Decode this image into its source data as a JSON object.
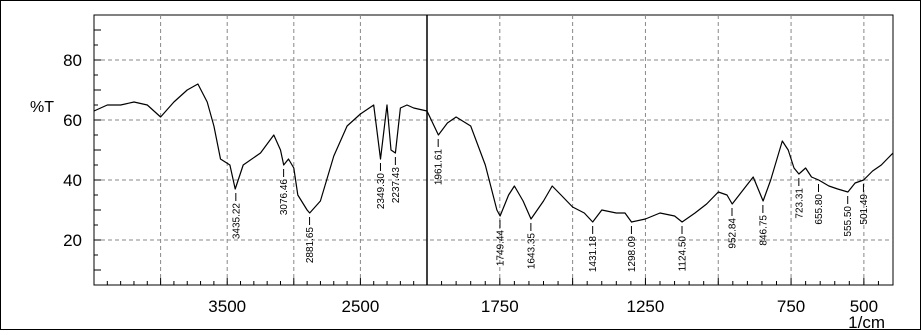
{
  "chart_data": {
    "type": "line",
    "title": "",
    "xlabel": "1/cm",
    "ylabel": "%T",
    "ylim": [
      5,
      95
    ],
    "grid": true,
    "x_axis": {
      "scale": "split",
      "segments": [
        {
          "from": 4500,
          "to": 2000
        },
        {
          "from": 2000,
          "to": 400
        }
      ],
      "tick_labels": [
        "3500",
        "2500",
        "1750",
        "1250",
        "750",
        "500"
      ],
      "tick_values": [
        3500,
        2500,
        1750,
        1250,
        750,
        500
      ]
    },
    "y_axis": {
      "tick_labels": [
        "20",
        "40",
        "60",
        "80"
      ],
      "tick_values": [
        20,
        40,
        60,
        80
      ]
    },
    "series": [
      {
        "color": "#000000",
        "points": [
          [
            4500,
            63
          ],
          [
            4400,
            65
          ],
          [
            4300,
            65
          ],
          [
            4200,
            66
          ],
          [
            4100,
            65
          ],
          [
            4000,
            61
          ],
          [
            3900,
            66
          ],
          [
            3800,
            70
          ],
          [
            3720,
            72
          ],
          [
            3650,
            66
          ],
          [
            3600,
            58
          ],
          [
            3550,
            47
          ],
          [
            3480,
            45
          ],
          [
            3440,
            37
          ],
          [
            3380,
            45
          ],
          [
            3250,
            49
          ],
          [
            3150,
            55
          ],
          [
            3100,
            50
          ],
          [
            3076,
            45
          ],
          [
            3040,
            47
          ],
          [
            3000,
            44
          ],
          [
            2970,
            35
          ],
          [
            2900,
            30
          ],
          [
            2881,
            29
          ],
          [
            2800,
            33
          ],
          [
            2700,
            48
          ],
          [
            2600,
            58
          ],
          [
            2500,
            62
          ],
          [
            2400,
            65
          ],
          [
            2349,
            47
          ],
          [
            2300,
            65
          ],
          [
            2270,
            50
          ],
          [
            2237,
            49
          ],
          [
            2200,
            64
          ],
          [
            2150,
            65
          ],
          [
            2100,
            64
          ],
          [
            2000,
            63
          ],
          [
            1961,
            55
          ],
          [
            1930,
            59
          ],
          [
            1900,
            61
          ],
          [
            1850,
            58
          ],
          [
            1800,
            45
          ],
          [
            1760,
            30
          ],
          [
            1749,
            28
          ],
          [
            1720,
            35
          ],
          [
            1700,
            38
          ],
          [
            1670,
            33
          ],
          [
            1643,
            27
          ],
          [
            1600,
            33
          ],
          [
            1570,
            38
          ],
          [
            1540,
            35
          ],
          [
            1500,
            31
          ],
          [
            1460,
            29
          ],
          [
            1431,
            26
          ],
          [
            1400,
            30
          ],
          [
            1350,
            29
          ],
          [
            1320,
            29
          ],
          [
            1298,
            26
          ],
          [
            1250,
            27
          ],
          [
            1200,
            29
          ],
          [
            1150,
            28
          ],
          [
            1124,
            26
          ],
          [
            1080,
            29
          ],
          [
            1040,
            32
          ],
          [
            1000,
            36
          ],
          [
            970,
            35
          ],
          [
            952,
            32
          ],
          [
            920,
            36
          ],
          [
            880,
            41
          ],
          [
            846,
            33
          ],
          [
            820,
            40
          ],
          [
            780,
            53
          ],
          [
            760,
            50
          ],
          [
            740,
            44
          ],
          [
            723,
            42
          ],
          [
            700,
            44
          ],
          [
            680,
            41
          ],
          [
            655,
            40
          ],
          [
            620,
            38
          ],
          [
            590,
            37
          ],
          [
            555,
            36
          ],
          [
            530,
            39
          ],
          [
            501,
            40
          ],
          [
            470,
            43
          ],
          [
            440,
            45
          ],
          [
            400,
            49
          ]
        ]
      }
    ],
    "cursor_x": 2000,
    "peak_labels": [
      {
        "x": 3435.22,
        "y": 37,
        "text": "3435.22"
      },
      {
        "x": 3076.46,
        "y": 45,
        "text": "3076.46"
      },
      {
        "x": 2881.65,
        "y": 29,
        "text": "2881.65"
      },
      {
        "x": 2349.3,
        "y": 47,
        "text": "2349.30"
      },
      {
        "x": 2237.43,
        "y": 49,
        "text": "2237.43"
      },
      {
        "x": 1961.61,
        "y": 55,
        "text": "1961.61"
      },
      {
        "x": 1749.44,
        "y": 28,
        "text": "1749.44"
      },
      {
        "x": 1643.35,
        "y": 27,
        "text": "1643.35"
      },
      {
        "x": 1431.18,
        "y": 26,
        "text": "1431.18"
      },
      {
        "x": 1298.09,
        "y": 26,
        "text": "1298.09"
      },
      {
        "x": 1124.5,
        "y": 26,
        "text": "1124.50"
      },
      {
        "x": 952.84,
        "y": 32,
        "text": "952.84"
      },
      {
        "x": 846.75,
        "y": 33,
        "text": "846.75"
      },
      {
        "x": 723.31,
        "y": 42,
        "text": "723.31"
      },
      {
        "x": 655.8,
        "y": 40,
        "text": "655.80"
      },
      {
        "x": 555.5,
        "y": 36,
        "text": "555.50"
      },
      {
        "x": 501.49,
        "y": 40,
        "text": "501.49"
      }
    ]
  }
}
